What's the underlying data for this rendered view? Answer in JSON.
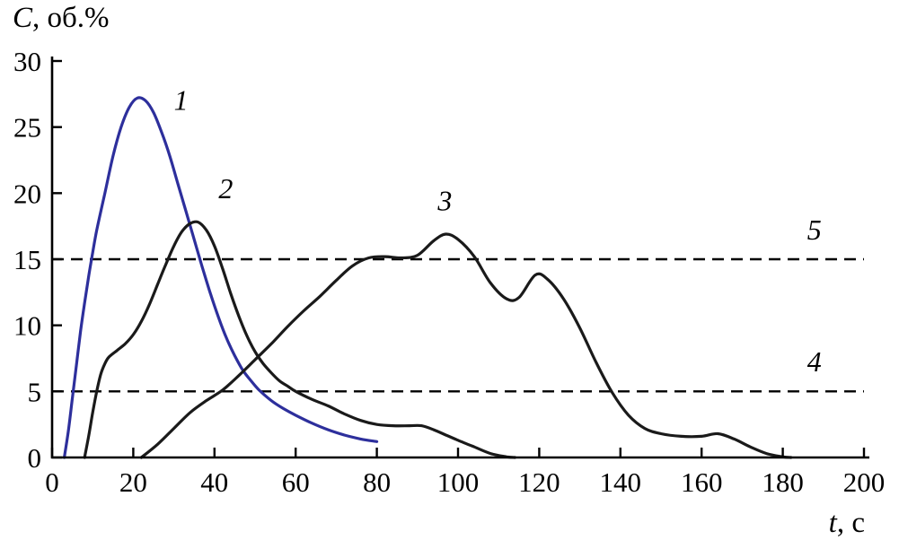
{
  "chart_data": {
    "type": "line",
    "title": "",
    "ylabel": {
      "italic": "C",
      "rest": ", об.%"
    },
    "xlabel": {
      "italic": "t",
      "rest": ", с"
    },
    "xlim": [
      0,
      200
    ],
    "ylim": [
      0,
      30
    ],
    "xticks": [
      0,
      20,
      40,
      60,
      80,
      100,
      120,
      140,
      160,
      180,
      200
    ],
    "yticks": [
      0,
      5,
      10,
      15,
      20,
      25,
      30
    ],
    "grid": false,
    "legend": "inline-numeric-labels",
    "colors": {
      "axis": "#000000",
      "curve1": "#2d2f9c",
      "curve_black": "#1a1a1a"
    },
    "series": [
      {
        "name": "1",
        "color": "#2d2f9c",
        "label_pos": [
          30,
          26.3
        ],
        "points": [
          [
            3,
            0
          ],
          [
            4,
            2
          ],
          [
            5,
            4.5
          ],
          [
            6,
            7
          ],
          [
            7,
            9.5
          ],
          [
            8,
            11.7
          ],
          [
            9,
            13.7
          ],
          [
            10,
            15.5
          ],
          [
            11,
            17.2
          ],
          [
            13,
            20
          ],
          [
            15,
            22.8
          ],
          [
            17,
            25
          ],
          [
            19,
            26.5
          ],
          [
            21,
            27.2
          ],
          [
            23,
            27
          ],
          [
            25,
            26.1
          ],
          [
            27,
            24.6
          ],
          [
            29,
            22.8
          ],
          [
            31,
            20.7
          ],
          [
            33,
            18.6
          ],
          [
            35,
            16.5
          ],
          [
            37,
            14.4
          ],
          [
            39,
            12.4
          ],
          [
            41,
            10.6
          ],
          [
            43,
            9
          ],
          [
            45,
            7.7
          ],
          [
            47,
            6.6
          ],
          [
            49,
            5.8
          ],
          [
            51,
            5.1
          ],
          [
            54,
            4.3
          ],
          [
            57,
            3.7
          ],
          [
            60,
            3.2
          ],
          [
            64,
            2.6
          ],
          [
            68,
            2.1
          ],
          [
            72,
            1.7
          ],
          [
            76,
            1.4
          ],
          [
            80,
            1.2
          ]
        ]
      },
      {
        "name": "2",
        "color": "#1a1a1a",
        "label_pos": [
          41,
          19.6
        ],
        "points": [
          [
            8,
            0
          ],
          [
            9,
            1.6
          ],
          [
            10,
            3.4
          ],
          [
            11,
            5
          ],
          [
            12,
            6.3
          ],
          [
            13,
            7.1
          ],
          [
            14,
            7.6
          ],
          [
            16,
            8.1
          ],
          [
            18,
            8.6
          ],
          [
            20,
            9.3
          ],
          [
            22,
            10.3
          ],
          [
            24,
            11.6
          ],
          [
            26,
            13.1
          ],
          [
            28,
            14.6
          ],
          [
            30,
            16
          ],
          [
            32,
            17.1
          ],
          [
            34,
            17.7
          ],
          [
            36,
            17.8
          ],
          [
            38,
            17.2
          ],
          [
            40,
            16
          ],
          [
            42,
            14.3
          ],
          [
            44,
            12.4
          ],
          [
            46,
            10.7
          ],
          [
            48,
            9.2
          ],
          [
            50,
            8
          ],
          [
            52,
            7.1
          ],
          [
            54,
            6.4
          ],
          [
            56,
            5.8
          ],
          [
            58,
            5.4
          ],
          [
            60,
            5
          ],
          [
            64,
            4.4
          ],
          [
            68,
            3.9
          ],
          [
            72,
            3.3
          ],
          [
            76,
            2.8
          ],
          [
            80,
            2.5
          ],
          [
            84,
            2.4
          ],
          [
            88,
            2.4
          ],
          [
            91,
            2.4
          ],
          [
            94,
            2.1
          ],
          [
            97,
            1.7
          ],
          [
            100,
            1.3
          ],
          [
            104,
            0.8
          ],
          [
            108,
            0.3
          ],
          [
            112,
            0.05
          ],
          [
            114,
            0
          ]
        ]
      },
      {
        "name": "3",
        "color": "#1a1a1a",
        "label_pos": [
          95,
          18.7
        ],
        "points": [
          [
            22,
            0
          ],
          [
            26,
            1
          ],
          [
            30,
            2.2
          ],
          [
            34,
            3.4
          ],
          [
            38,
            4.3
          ],
          [
            42,
            5.1
          ],
          [
            46,
            6.2
          ],
          [
            50,
            7.4
          ],
          [
            54,
            8.6
          ],
          [
            58,
            9.9
          ],
          [
            62,
            11.1
          ],
          [
            66,
            12.2
          ],
          [
            70,
            13.4
          ],
          [
            74,
            14.5
          ],
          [
            78,
            15.1
          ],
          [
            82,
            15.2
          ],
          [
            86,
            15.1
          ],
          [
            90,
            15.3
          ],
          [
            94,
            16.4
          ],
          [
            97,
            16.9
          ],
          [
            100,
            16.5
          ],
          [
            104,
            15.2
          ],
          [
            108,
            13.2
          ],
          [
            112,
            12
          ],
          [
            115,
            12.1
          ],
          [
            119,
            13.8
          ],
          [
            122,
            13.5
          ],
          [
            126,
            12
          ],
          [
            130,
            9.8
          ],
          [
            134,
            7.2
          ],
          [
            138,
            4.9
          ],
          [
            142,
            3.2
          ],
          [
            146,
            2.2
          ],
          [
            150,
            1.8
          ],
          [
            155,
            1.6
          ],
          [
            160,
            1.6
          ],
          [
            164,
            1.8
          ],
          [
            168,
            1.4
          ],
          [
            172,
            0.8
          ],
          [
            176,
            0.3
          ],
          [
            180,
            0.05
          ],
          [
            182,
            0
          ]
        ]
      }
    ],
    "reference_lines": [
      {
        "name": "4",
        "y": 5,
        "label_pos": [
          186,
          6.5
        ]
      },
      {
        "name": "5",
        "y": 15,
        "label_pos": [
          186,
          16.5
        ]
      }
    ]
  }
}
